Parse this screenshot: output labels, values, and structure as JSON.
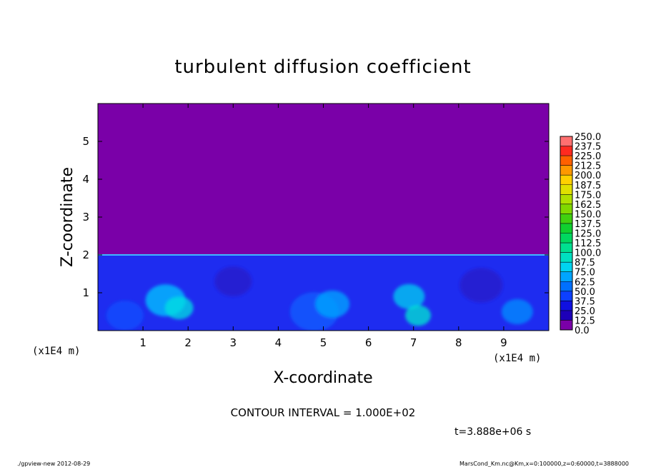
{
  "chart_data": {
    "type": "heatmap",
    "title": "turbulent diffusion coefficient",
    "xlabel": "X-coordinate",
    "ylabel": "Z-coordinate",
    "x_unit": "(x1E4 m)",
    "y_unit": "(x1E4 m)",
    "xlim": [
      0,
      10
    ],
    "ylim": [
      0,
      6
    ],
    "x_ticks": [
      "1",
      "2",
      "3",
      "4",
      "5",
      "6",
      "7",
      "8",
      "9"
    ],
    "y_ticks": [
      "1",
      "2",
      "3",
      "4",
      "5"
    ],
    "boundary_layer_top": 2,
    "contour_interval_label": "CONTOUR INTERVAL = 1.000E+02",
    "time_label": "t=3.888e+06 s",
    "colorbar": {
      "levels": [
        "0.0",
        "12.5",
        "25.0",
        "37.5",
        "50.0",
        "62.5",
        "75.0",
        "87.5",
        "100.0",
        "112.5",
        "125.0",
        "137.5",
        "150.0",
        "162.5",
        "175.0",
        "187.5",
        "200.0",
        "212.5",
        "225.0",
        "237.5",
        "250.0"
      ],
      "colors": [
        "#7a00a8",
        "#1d00b8",
        "#1010e0",
        "#0d40ff",
        "#0070ff",
        "#00a5ff",
        "#00d4f0",
        "#00e0c0",
        "#00e090",
        "#00d860",
        "#10d030",
        "#40d010",
        "#80d800",
        "#b0e000",
        "#e0e000",
        "#ffd000",
        "#ff9800",
        "#ff6000",
        "#ff2a20",
        "#ff7070"
      ]
    },
    "background_color": "#7a00a8",
    "field_color": "#1e2cf0"
  },
  "footer": {
    "left": "./gpview-new  2012-08-29",
    "right": "MarsCond_Km.nc@Km,x=0:100000,z=0:60000,t=3888000"
  }
}
